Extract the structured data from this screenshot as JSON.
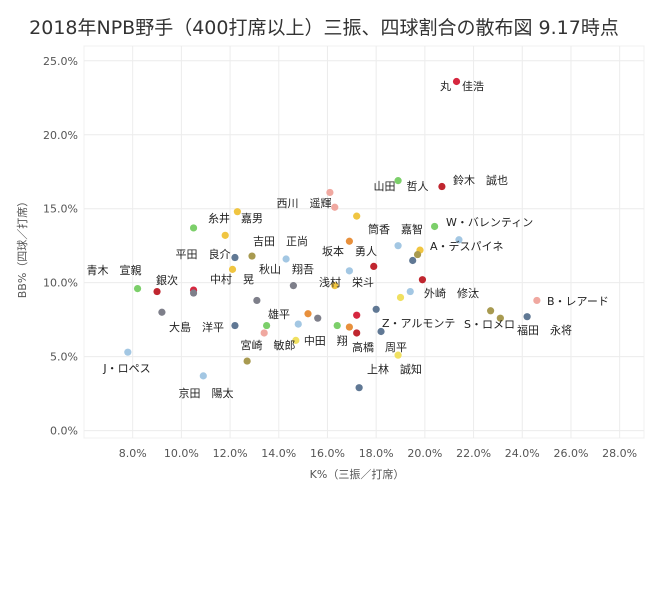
{
  "chart_data": {
    "type": "scatter",
    "title": "2018年NPB野手（400打席以上）三振、四球割合の散布図 9.17時点",
    "xlabel": "K%（三振／打席）",
    "ylabel": "BB%（四球／打席）",
    "xlim": [
      6.0,
      29.0
    ],
    "ylim": [
      -0.5,
      26.0
    ],
    "x_ticks": [
      "8.0%",
      "10.0%",
      "12.0%",
      "14.0%",
      "16.0%",
      "18.0%",
      "20.0%",
      "22.0%",
      "24.0%",
      "26.0%",
      "28.0%"
    ],
    "x_tick_values": [
      8,
      10,
      12,
      14,
      16,
      18,
      20,
      22,
      24,
      26,
      28
    ],
    "y_ticks": [
      "0.0%",
      "5.0%",
      "10.0%",
      "15.0%",
      "20.0%",
      "25.0%"
    ],
    "y_tick_values": [
      0,
      5,
      10,
      15,
      20,
      25
    ],
    "grid": true,
    "points": [
      {
        "x": 21.3,
        "y": 23.6,
        "color": "#d6273f",
        "label": "丸　佳浩"
      },
      {
        "x": 18.9,
        "y": 16.9,
        "color": "#7ccf6a",
        "label": "山田　哲人"
      },
      {
        "x": 20.7,
        "y": 16.5,
        "color": "#c0262f",
        "label": "鈴木　誠也"
      },
      {
        "x": 16.1,
        "y": 16.1,
        "color": "#f0a8a0",
        "label": ""
      },
      {
        "x": 16.3,
        "y": 15.1,
        "color": "#f0a8a0",
        "label": "西川　遥輝"
      },
      {
        "x": 12.3,
        "y": 14.8,
        "color": "#f0c541",
        "label": ""
      },
      {
        "x": 17.2,
        "y": 14.5,
        "color": "#f0c541",
        "label": ""
      },
      {
        "x": 10.5,
        "y": 13.7,
        "color": "#7ccf6a",
        "label": "糸井　嘉男"
      },
      {
        "x": 20.4,
        "y": 13.8,
        "color": "#7ccf6a",
        "label": "W・バレンティン"
      },
      {
        "x": 11.8,
        "y": 13.2,
        "color": "#f0c541",
        "label": ""
      },
      {
        "x": 21.4,
        "y": 12.9,
        "color": "#a3c7e3",
        "label": ""
      },
      {
        "x": 18.9,
        "y": 12.5,
        "color": "#a3c7e3",
        "label": "筒香　嘉智"
      },
      {
        "x": 16.9,
        "y": 12.8,
        "color": "#e8903c",
        "label": ""
      },
      {
        "x": 19.8,
        "y": 12.2,
        "color": "#f0c541",
        "label": ""
      },
      {
        "x": 19.7,
        "y": 11.9,
        "color": "#a89a50",
        "label": "A・デスパイネ"
      },
      {
        "x": 12.2,
        "y": 11.7,
        "color": "#607894",
        "label": "平田　良介"
      },
      {
        "x": 12.9,
        "y": 11.8,
        "color": "#a89a50",
        "label": "吉田　正尚"
      },
      {
        "x": 14.3,
        "y": 11.6,
        "color": "#a3c7e3",
        "label": ""
      },
      {
        "x": 19.5,
        "y": 11.5,
        "color": "#607894",
        "label": ""
      },
      {
        "x": 17.9,
        "y": 11.1,
        "color": "#c0262f",
        "label": "坂本　勇人"
      },
      {
        "x": 12.1,
        "y": 10.9,
        "color": "#f0c541",
        "label": "秋山　翔吾"
      },
      {
        "x": 16.9,
        "y": 10.8,
        "color": "#a3c7e3",
        "label": ""
      },
      {
        "x": 19.9,
        "y": 10.2,
        "color": "#c0262f",
        "label": "外崎　修汰"
      },
      {
        "x": 14.6,
        "y": 9.8,
        "color": "#7e7f8a",
        "label": "中村　晃"
      },
      {
        "x": 16.3,
        "y": 9.8,
        "color": "#f0c541",
        "label": "浅村　栄斗"
      },
      {
        "x": 8.2,
        "y": 9.6,
        "color": "#7ccf6a",
        "label": "青木　宣親"
      },
      {
        "x": 10.5,
        "y": 9.5,
        "color": "#d6273f",
        "label": ""
      },
      {
        "x": 10.5,
        "y": 9.3,
        "color": "#7e7f8a",
        "label": ""
      },
      {
        "x": 9.0,
        "y": 9.4,
        "color": "#c0262f",
        "label": "銀次"
      },
      {
        "x": 19.4,
        "y": 9.4,
        "color": "#a3c7e3",
        "label": ""
      },
      {
        "x": 19.0,
        "y": 9.0,
        "color": "#f0e060",
        "label": ""
      },
      {
        "x": 24.6,
        "y": 8.8,
        "color": "#f0a8a0",
        "label": "B・レアード"
      },
      {
        "x": 13.1,
        "y": 8.8,
        "color": "#7e7f8a",
        "label": ""
      },
      {
        "x": 18.0,
        "y": 8.2,
        "color": "#607894",
        "label": ""
      },
      {
        "x": 22.7,
        "y": 8.1,
        "color": "#a89a50",
        "label": ""
      },
      {
        "x": 9.2,
        "y": 8.0,
        "color": "#7e7f8a",
        "label": ""
      },
      {
        "x": 15.2,
        "y": 7.9,
        "color": "#e8903c",
        "label": "雄平"
      },
      {
        "x": 15.6,
        "y": 7.6,
        "color": "#7e7f8a",
        "label": ""
      },
      {
        "x": 17.2,
        "y": 7.8,
        "color": "#d6273f",
        "label": ""
      },
      {
        "x": 24.2,
        "y": 7.7,
        "color": "#607894",
        "label": "福田　永将"
      },
      {
        "x": 23.1,
        "y": 7.6,
        "color": "#a89a50",
        "label": "S・ロメロ"
      },
      {
        "x": 14.8,
        "y": 7.2,
        "color": "#a3c7e3",
        "label": ""
      },
      {
        "x": 16.4,
        "y": 7.1,
        "color": "#7ccf6a",
        "label": ""
      },
      {
        "x": 16.9,
        "y": 7.0,
        "color": "#e8903c",
        "label": ""
      },
      {
        "x": 13.5,
        "y": 7.1,
        "color": "#7ccf6a",
        "label": ""
      },
      {
        "x": 12.2,
        "y": 7.1,
        "color": "#607894",
        "label": "大島　洋平"
      },
      {
        "x": 18.2,
        "y": 6.7,
        "color": "#607894",
        "label": "Z・アルモンテ"
      },
      {
        "x": 17.2,
        "y": 6.6,
        "color": "#c0262f",
        "label": "高橋　周平"
      },
      {
        "x": 13.4,
        "y": 6.6,
        "color": "#f0a8a0",
        "label": ""
      },
      {
        "x": 14.7,
        "y": 6.1,
        "color": "#f0e060",
        "label": "中田　翔"
      },
      {
        "x": 7.8,
        "y": 5.3,
        "color": "#a3c7e3",
        "label": "宮崎　敏郎"
      },
      {
        "x": 18.9,
        "y": 5.1,
        "color": "#f0e060",
        "label": "上林　誠知"
      },
      {
        "x": 12.7,
        "y": 4.7,
        "color": "#a89a50",
        "label": ""
      },
      {
        "x": 10.9,
        "y": 3.7,
        "color": "#a3c7e3",
        "label": "J・ロペス"
      },
      {
        "x": 17.3,
        "y": 2.9,
        "color": "#607894",
        "label": "京田　陽太"
      }
    ]
  }
}
